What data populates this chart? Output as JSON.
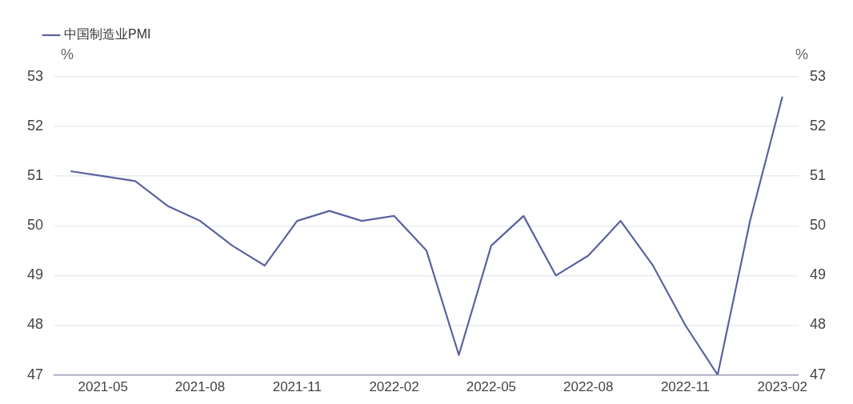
{
  "chart_data": {
    "type": "line",
    "categories": [
      null,
      "2021-05",
      null,
      null,
      "2021-08",
      null,
      null,
      "2021-11",
      null,
      null,
      "2022-02",
      null,
      null,
      "2022-05",
      null,
      null,
      "2022-08",
      null,
      null,
      "2022-11",
      null,
      null,
      "2023-02"
    ],
    "series": [
      {
        "name": "中国制造业PMI",
        "color": "#5b62a0",
        "values": [
          51.1,
          51.0,
          50.9,
          50.4,
          50.1,
          49.6,
          49.2,
          50.1,
          50.3,
          50.1,
          50.2,
          49.5,
          47.4,
          49.6,
          50.2,
          49.0,
          49.4,
          50.1,
          49.2,
          48.0,
          47.0,
          50.1,
          52.6
        ]
      }
    ],
    "ylabel": "%",
    "y2label": "%",
    "ylim": [
      47,
      53
    ],
    "yticks": [
      47,
      48,
      49,
      50,
      51,
      52,
      53
    ],
    "y2lim": [
      47,
      53
    ],
    "y2ticks": [
      47,
      48,
      49,
      50,
      51,
      52,
      53
    ],
    "grid": "y",
    "legend": "top left",
    "marker": "none",
    "line_style": "solid"
  }
}
